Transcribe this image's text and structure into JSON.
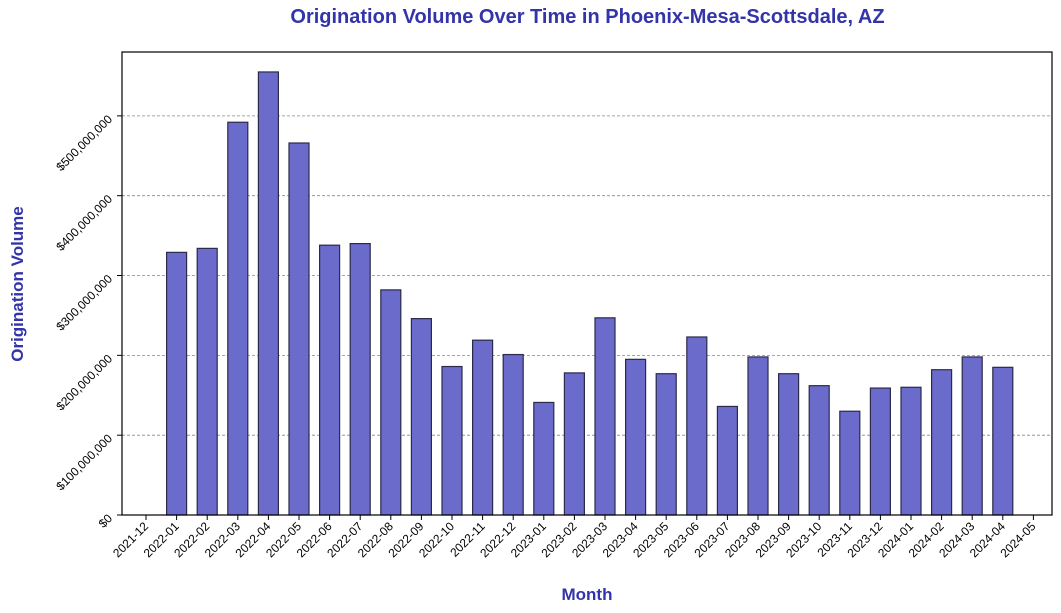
{
  "chart_data": {
    "type": "bar",
    "title": "Origination Volume Over Time in Phoenix-Mesa-Scottsdale, AZ",
    "xlabel": "Month",
    "ylabel": "Origination Volume",
    "ylim": [
      0,
      580000000
    ],
    "grid": "y-dashed",
    "x_ticks": [
      "2021-12",
      "2022-01",
      "2022-02",
      "2022-03",
      "2022-04",
      "2022-05",
      "2022-06",
      "2022-07",
      "2022-08",
      "2022-09",
      "2022-10",
      "2022-11",
      "2022-12",
      "2023-01",
      "2023-02",
      "2023-03",
      "2023-04",
      "2023-05",
      "2023-06",
      "2023-07",
      "2023-08",
      "2023-09",
      "2023-10",
      "2023-11",
      "2023-12",
      "2024-01",
      "2024-02",
      "2024-03",
      "2024-04",
      "2024-05"
    ],
    "y_ticks": [
      {
        "value": 0,
        "label": "$0"
      },
      {
        "value": 100000000,
        "label": "$100,000,000"
      },
      {
        "value": 200000000,
        "label": "$200,000,000"
      },
      {
        "value": 300000000,
        "label": "$300,000,000"
      },
      {
        "value": 400000000,
        "label": "$400,000,000"
      },
      {
        "value": 500000000,
        "label": "$500,000,000"
      }
    ],
    "categories": [
      "2022-01",
      "2022-02",
      "2022-03",
      "2022-04",
      "2022-05",
      "2022-06",
      "2022-07",
      "2022-08",
      "2022-09",
      "2022-10",
      "2022-11",
      "2022-12",
      "2023-01",
      "2023-02",
      "2023-03",
      "2023-04",
      "2023-05",
      "2023-06",
      "2023-07",
      "2023-08",
      "2023-09",
      "2023-10",
      "2023-11",
      "2023-12",
      "2024-01",
      "2024-02",
      "2024-03",
      "2024-04"
    ],
    "values": [
      329000000,
      334000000,
      492000000,
      555000000,
      466000000,
      338000000,
      340000000,
      282000000,
      246000000,
      186000000,
      219000000,
      201000000,
      141000000,
      178000000,
      247000000,
      195000000,
      177000000,
      223000000,
      136000000,
      198000000,
      177000000,
      162000000,
      130000000,
      159000000,
      160000000,
      182000000,
      198000000,
      185000000
    ],
    "colors": {
      "bar_fill": "#6b6bcb",
      "bar_edge": "#2a2a4a",
      "title": "#3333aa",
      "grid": "#888888"
    }
  }
}
